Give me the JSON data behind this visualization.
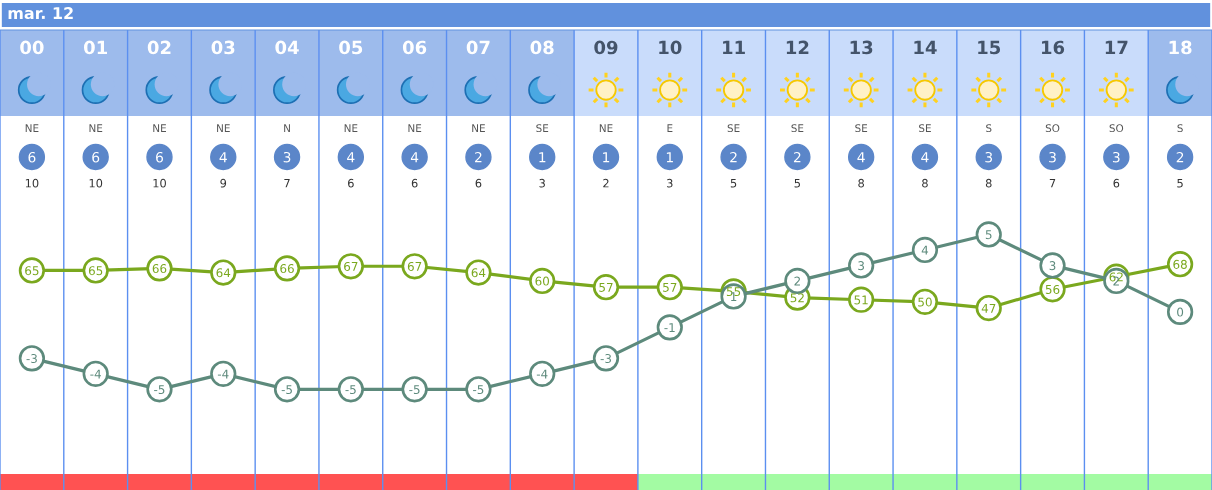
{
  "chart_data": {
    "type": "line",
    "title": "mar. 12",
    "categories": [
      "00",
      "01",
      "02",
      "03",
      "04",
      "05",
      "06",
      "07",
      "08",
      "09",
      "10",
      "11",
      "12",
      "13",
      "14",
      "15",
      "16",
      "17",
      "18"
    ],
    "series": [
      {
        "color": "#7aa81e",
        "values": [
          65,
          65,
          66,
          64,
          66,
          67,
          67,
          64,
          60,
          57,
          57,
          55,
          52,
          51,
          50,
          47,
          56,
          62,
          68
        ]
      },
      {
        "color": "#5d8a7c",
        "axis": "y2",
        "values": [
          -3,
          -4,
          -5,
          -4,
          -5,
          -5,
          -5,
          -5,
          -4,
          -3,
          -1,
          1,
          2,
          3,
          4,
          5,
          3,
          2,
          0
        ]
      }
    ],
    "ylim": [
      -40,
      180
    ],
    "y2lim": [
      -11.5,
      18.2
    ],
    "tick_labels": "x",
    "data_labels": true,
    "marker": "circle",
    "grid": "x",
    "annotations": [
      "NE",
      "NE",
      "NE",
      "NE",
      "N",
      "NE",
      "NE",
      "NE",
      "SE",
      "NE",
      "E",
      "SE",
      "SE",
      "SE",
      "SE",
      "S",
      "SO",
      "SO",
      "S",
      "6",
      "6",
      "6",
      "4",
      "3",
      "4",
      "4",
      "2",
      "1",
      "1",
      "1",
      "2",
      "2",
      "4",
      "4",
      "3",
      "3",
      "3",
      "2",
      "10",
      "10",
      "10",
      "9",
      "7",
      "6",
      "6",
      "6",
      "3",
      "2",
      "3",
      "5",
      "5",
      "8",
      "8",
      "8",
      "7",
      "6",
      "5"
    ]
  }
}
